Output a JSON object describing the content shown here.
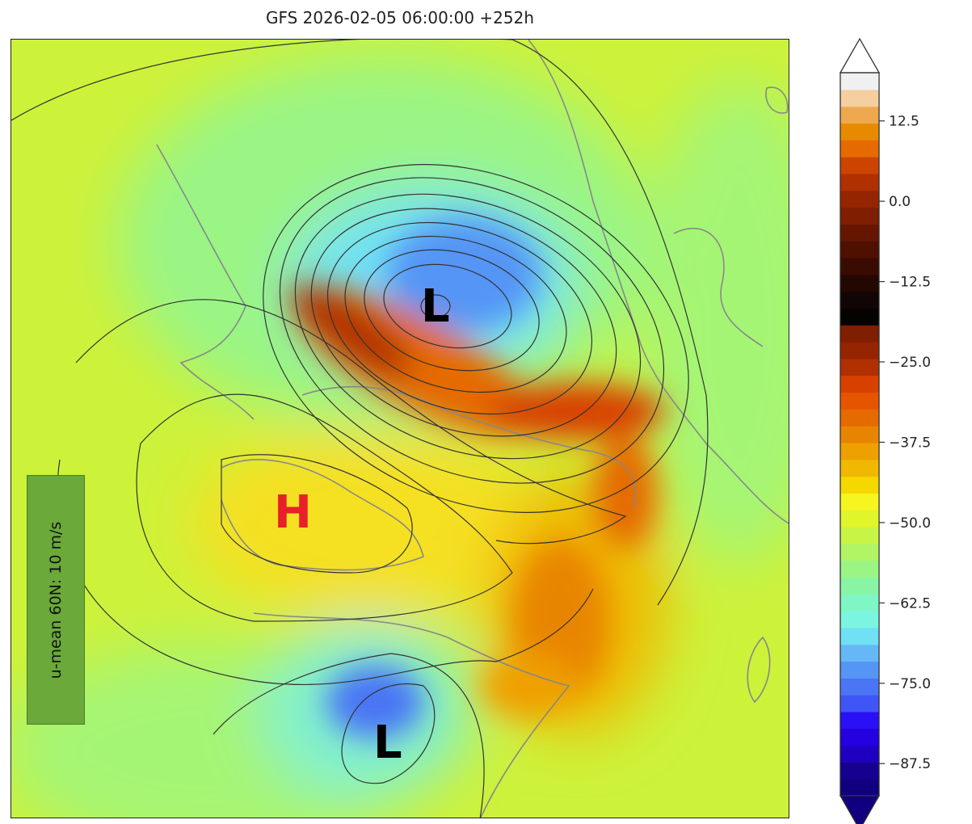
{
  "title": "GFS 2026-02-05 06:00:00 +252h",
  "annotation": "u-mean 60N: 10 m/s",
  "markers": [
    {
      "text": "L",
      "color": "#000000",
      "place": "north-center"
    },
    {
      "text": "H",
      "color": "#e8202a",
      "place": "west-center"
    },
    {
      "text": "L",
      "color": "#000000",
      "place": "south-center"
    }
  ],
  "colorbar": {
    "min": -92.5,
    "max": 20,
    "step": 2.5,
    "extend": "both",
    "ticks": [
      "12.5",
      "0.0",
      "−12.5",
      "−25.0",
      "−37.5",
      "−50.0",
      "−62.5",
      "−75.0",
      "−87.5"
    ],
    "tick_values": [
      12.5,
      0,
      -12.5,
      -25,
      -37.5,
      -50,
      -62.5,
      -75,
      -87.5
    ],
    "colors": [
      "#100080",
      "#150090",
      "#2000c0",
      "#2500e0",
      "#2a10f5",
      "#4055f5",
      "#4a75f5",
      "#5595f5",
      "#65b8f5",
      "#70e0f5",
      "#7cf5e0",
      "#80f5c5",
      "#88f5a5",
      "#9af585",
      "#b0f565",
      "#c8f545",
      "#e0f52a",
      "#f5f520",
      "#f5d800",
      "#f0b800",
      "#eea000",
      "#e88500",
      "#e56a00",
      "#e55500",
      "#d84000",
      "#b03000",
      "#952400",
      "#7f1e00",
      "#050300",
      "#120505",
      "#220800",
      "#3a0b00",
      "#4f1000",
      "#661600",
      "#7f1e00",
      "#952400",
      "#b03000",
      "#cc4400",
      "#e56a00",
      "#e88a00",
      "#eea84e",
      "#f5cfa0",
      "#f0f0f0"
    ],
    "over_color": "#ffffff",
    "under_color": "#100080"
  }
}
